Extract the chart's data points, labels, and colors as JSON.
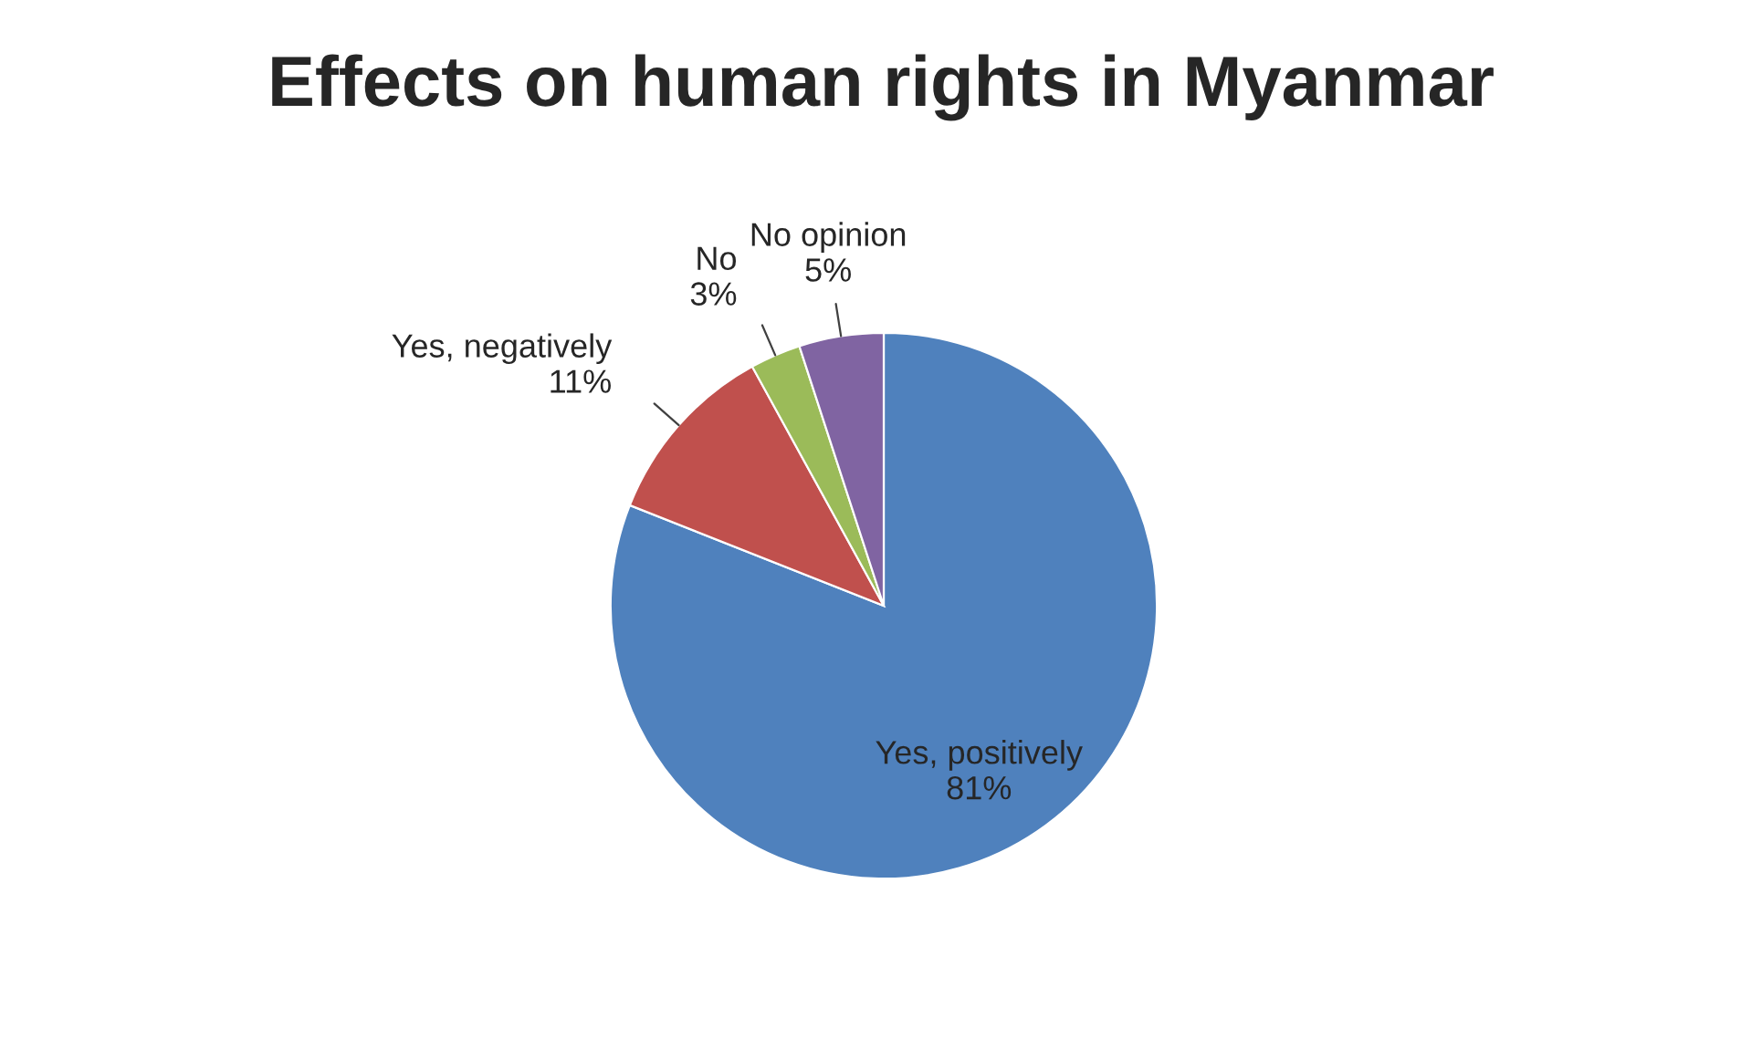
{
  "chart_data": {
    "type": "pie",
    "title": "Effects on human rights in Myanmar",
    "categories": [
      "Yes, positively",
      "Yes, negatively",
      "No",
      "No opinion"
    ],
    "values": [
      81,
      11,
      3,
      5
    ],
    "value_labels": [
      "81%",
      "11%",
      "3%",
      "5%"
    ],
    "colors": [
      "#4f81bd",
      "#c0504d",
      "#9bbb59",
      "#8064a2"
    ],
    "legend": false
  }
}
